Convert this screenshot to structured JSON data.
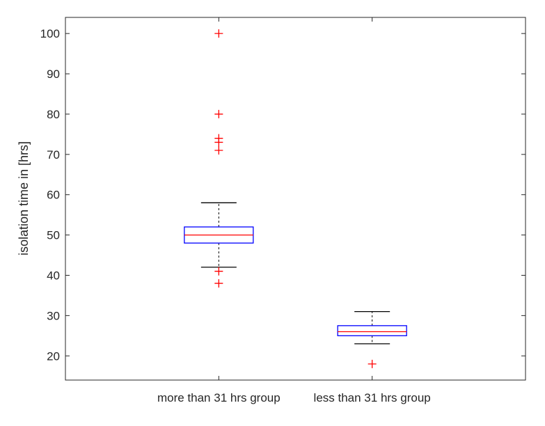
{
  "chart_data": {
    "type": "box",
    "title": "",
    "xlabel": "",
    "ylabel": "isolation time in [hrs]",
    "ylim": [
      14,
      104
    ],
    "yticks": [
      20,
      30,
      40,
      50,
      60,
      70,
      80,
      90,
      100
    ],
    "grid": false,
    "categories": [
      "more than 31 hrs group",
      "less than 31 hrs group"
    ],
    "boxes": [
      {
        "category": "more than 31 hrs group",
        "whisker_low": 42,
        "q1": 48,
        "median": 50,
        "q3": 52,
        "whisker_high": 58,
        "outliers": [
          38,
          41,
          71,
          73,
          74,
          80,
          100
        ]
      },
      {
        "category": "less than 31 hrs group",
        "whisker_low": 23,
        "q1": 25,
        "median": 26,
        "q3": 27.5,
        "whisker_high": 31,
        "outliers": [
          18
        ]
      }
    ],
    "colors": {
      "box": "#0000ff",
      "median": "#ff0000",
      "whisker": "#000000",
      "outlier": "#ff0000",
      "axis": "#262626"
    }
  }
}
